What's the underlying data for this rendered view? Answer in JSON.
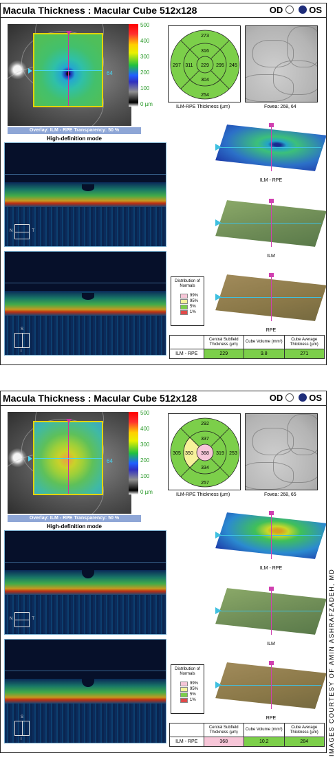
{
  "reports": [
    {
      "title": "Macula Thickness : Macular Cube 512x128",
      "od_label": "OD",
      "os_label": "OS",
      "colorbar": [
        "500",
        "400",
        "300",
        "200",
        "100",
        "0 µm"
      ],
      "map_marker": "64",
      "overlay_text": "Overlay: ILM - RPE  Transparency: 50 %",
      "mode_label": "High-definition mode",
      "etdrs": {
        "outer_top": "273",
        "inner_top": "316",
        "outer_left": "297",
        "inner_left": "311",
        "center": "229",
        "inner_right": "295",
        "outer_right": "245",
        "inner_bottom": "304",
        "outer_bottom": "254"
      },
      "etdrs_caption": "ILM-RPE Thickness (µm)",
      "fovea_caption": "Fovea: 268, 64",
      "surfaces": [
        "ILM - RPE",
        "ILM",
        "RPE"
      ],
      "legend": {
        "title": "Distribution of Normals",
        "items": [
          "99%",
          "95%",
          "5%",
          "1%"
        ],
        "colors": [
          "#f7c6d8",
          "#f6f29a",
          "#7ccf4a",
          "#e04a4a"
        ]
      },
      "table": {
        "headers": [
          "",
          "Central Subfield Thickness (µm)",
          "Cube Volume (mm³)",
          "Cube Average Thickness (µm)"
        ],
        "row_label": "ILM - RPE",
        "values": [
          "229",
          "9.8",
          "271"
        ],
        "cell_colors": [
          "#7ccf4a",
          "#7ccf4a",
          "#7ccf4a"
        ]
      },
      "orient1": {
        "left": "N",
        "right": "T"
      },
      "orient2": {
        "top": "S",
        "bottom": "I"
      }
    },
    {
      "title": "Macula Thickness : Macular Cube 512x128",
      "od_label": "OD",
      "os_label": "OS",
      "colorbar": [
        "500",
        "400",
        "300",
        "200",
        "100",
        "0 µm"
      ],
      "map_marker": "64",
      "overlay_text": "Overlay: ILM - RPE  Transparency: 50 %",
      "mode_label": "High-definition mode",
      "etdrs": {
        "outer_top": "292",
        "inner_top": "337",
        "outer_left": "305",
        "inner_left": "350",
        "center": "368",
        "inner_right": "319",
        "outer_right": "253",
        "inner_bottom": "334",
        "outer_bottom": "257"
      },
      "etdrs_caption": "ILM-RPE Thickness (µm)",
      "fovea_caption": "Fovea: 268, 65",
      "surfaces": [
        "ILM - RPE",
        "ILM",
        "RPE"
      ],
      "legend": {
        "title": "Distribution of Normals",
        "items": [
          "99%",
          "95%",
          "5%",
          "1%"
        ],
        "colors": [
          "#f7c6d8",
          "#f6f29a",
          "#7ccf4a",
          "#e04a4a"
        ]
      },
      "table": {
        "headers": [
          "",
          "Central Subfield Thickness (µm)",
          "Cube Volume (mm³)",
          "Cube Average Thickness (µm)"
        ],
        "row_label": "ILM - RPE",
        "values": [
          "368",
          "10.2",
          "284"
        ],
        "cell_colors": [
          "#f7c6d8",
          "#7ccf4a",
          "#7ccf4a"
        ]
      },
      "orient1": {
        "left": "N",
        "right": "T"
      },
      "orient2": {
        "top": "S",
        "bottom": "I"
      }
    }
  ],
  "credit": "IMAGES COURTESY OF AMIN ASHRAFZADEH, MD",
  "colors": {
    "normal_green": "#7ccf4a",
    "yellow": "#f6f29a",
    "pink": "#f7c6d8",
    "red": "#e04a4a",
    "os_blue": "#1e2d7a"
  }
}
